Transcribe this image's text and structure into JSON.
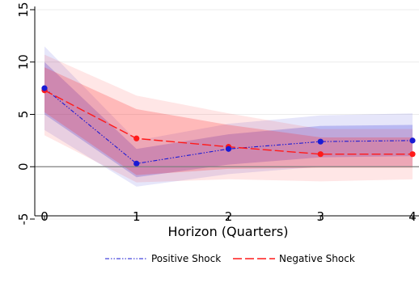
{
  "chart_data": {
    "type": "line",
    "xlabel": "Horizon (Quarters)",
    "ylabel": "",
    "x": [
      0,
      1,
      2,
      3,
      4
    ],
    "xlim": [
      0,
      4
    ],
    "ylim": [
      -5,
      15
    ],
    "x_ticks": [
      "0",
      "1",
      "2",
      "3",
      "4"
    ],
    "y_ticks": [
      "-5",
      "0",
      "5",
      "10",
      "15"
    ],
    "zero_line": 0,
    "grid": "horizontal",
    "legend_position": "bottom",
    "series": [
      {
        "name": "Positive Shock",
        "color": "#1a1ad4",
        "line_style": "dash-dot-dot",
        "values": [
          7.5,
          0.3,
          1.7,
          2.4,
          2.5
        ],
        "bands": [
          {
            "lower": [
              5.0,
              -1.0,
              0.2,
              0.9,
              1.0
            ],
            "upper": [
              10.0,
              1.7,
              3.1,
              3.9,
              4.0
            ],
            "opacity": 0.22
          },
          {
            "lower": [
              3.5,
              -1.9,
              -0.7,
              0.0,
              0.0
            ],
            "upper": [
              11.5,
              2.5,
              4.1,
              4.9,
              5.1
            ],
            "opacity": 0.11
          }
        ]
      },
      {
        "name": "Negative Shock",
        "color": "#ff1a1a",
        "line_style": "long-dash",
        "values": [
          7.3,
          2.7,
          1.9,
          1.2,
          1.2
        ],
        "bands": [
          {
            "lower": [
              5.2,
              -0.8,
              -0.2,
              -0.1,
              -0.1
            ],
            "upper": [
              9.5,
              5.5,
              4.0,
              2.8,
              2.8
            ],
            "opacity": 0.22
          },
          {
            "lower": [
              3.0,
              -1.5,
              -1.2,
              -1.4,
              -1.2
            ],
            "upper": [
              10.7,
              6.8,
              5.1,
              3.6,
              3.6
            ],
            "opacity": 0.11
          }
        ]
      }
    ]
  }
}
